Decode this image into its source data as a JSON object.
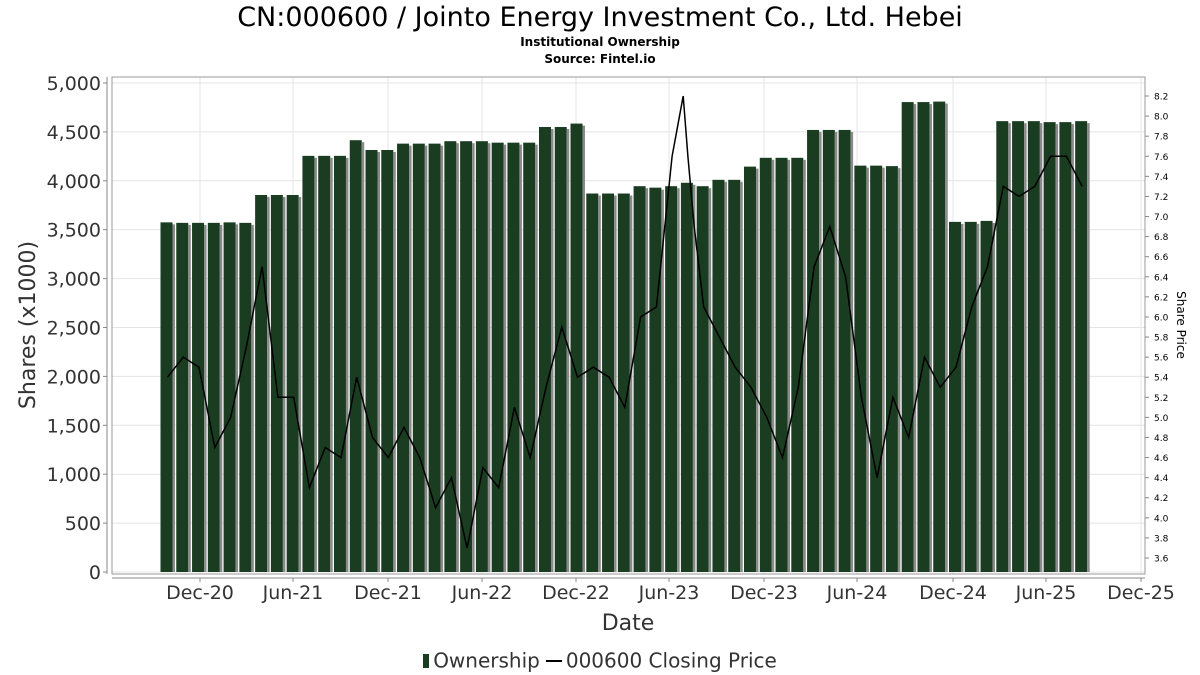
{
  "chart_data": {
    "type": "bar",
    "title": "CN:000600 / Jointo Energy Investment Co., Ltd. Hebei",
    "subtitle1": "Institutional Ownership",
    "subtitle2": "Source: Fintel.io",
    "xlabel": "Date",
    "ylabel": "Shares (x1000)",
    "y2label": "Share Price",
    "ylim": [
      0,
      5000
    ],
    "y2lim": [
      3.5,
      8.3
    ],
    "y_ticks": [
      "0",
      "500",
      "1,000",
      "1,500",
      "2,000",
      "2,500",
      "3,000",
      "3,500",
      "4,000",
      "4,500",
      "5,000"
    ],
    "y2_ticks": [
      "3.6",
      "3.8",
      "4.0",
      "4.2",
      "4.4",
      "4.6",
      "4.8",
      "5.0",
      "5.2",
      "5.4",
      "5.6",
      "5.8",
      "6.0",
      "6.2",
      "6.4",
      "6.6",
      "6.8",
      "7.0",
      "7.2",
      "7.4",
      "7.6",
      "7.8",
      "8.0",
      "8.2"
    ],
    "x_ticks": [
      "Dec-20",
      "Jun-21",
      "Dec-21",
      "Jun-22",
      "Dec-22",
      "Jun-23",
      "Dec-23",
      "Jun-24",
      "Dec-24",
      "Jun-25",
      "Dec-25"
    ],
    "grid": true,
    "legend_position": "bottom",
    "series": [
      {
        "name": "Ownership",
        "color": "#1a3d22",
        "values": [
          3575,
          3570,
          3570,
          3570,
          3575,
          3570,
          3855,
          3855,
          3855,
          4255,
          4255,
          4255,
          4415,
          4315,
          4315,
          4380,
          4380,
          4380,
          4405,
          4405,
          4405,
          4390,
          4390,
          4390,
          4550,
          4550,
          4585,
          3870,
          3870,
          3870,
          3945,
          3930,
          3945,
          3980,
          3945,
          4010,
          4010,
          4145,
          4235,
          4235,
          4235,
          4520,
          4520,
          4520,
          4155,
          4155,
          4150,
          4805,
          4805,
          4810,
          3580,
          3580,
          3590,
          4610,
          4610,
          4610,
          4600,
          4600,
          4610
        ]
      },
      {
        "name": "000600 Closing Price",
        "color": "#000000",
        "x_index": [
          0,
          1,
          2,
          3,
          4,
          5,
          6,
          7,
          8,
          9,
          10,
          11,
          12,
          13,
          14,
          15,
          16,
          17,
          18,
          19,
          20,
          21,
          22,
          23,
          24,
          25,
          26,
          27,
          28,
          29,
          30,
          31,
          32,
          32.7,
          33,
          33.4,
          34,
          35,
          36,
          37,
          38,
          39,
          40,
          41,
          42,
          43,
          44,
          45,
          46,
          47,
          48,
          49,
          50,
          51,
          52,
          53,
          54,
          55,
          56,
          57,
          58
        ],
        "values": [
          5.4,
          5.6,
          5.5,
          4.7,
          5.0,
          5.7,
          6.5,
          5.2,
          5.2,
          4.3,
          4.7,
          4.6,
          5.4,
          4.8,
          4.6,
          4.9,
          4.6,
          4.1,
          4.4,
          3.7,
          4.5,
          4.3,
          5.1,
          4.6,
          5.3,
          5.9,
          5.4,
          5.5,
          5.4,
          5.1,
          6.0,
          6.1,
          7.6,
          8.2,
          7.6,
          6.9,
          6.1,
          5.8,
          5.5,
          5.3,
          5.0,
          4.6,
          5.3,
          6.5,
          6.9,
          6.4,
          5.2,
          4.4,
          5.2,
          4.8,
          5.6,
          5.3,
          5.5,
          6.1,
          6.5,
          7.3,
          7.2,
          7.3,
          7.6,
          7.6,
          7.3
        ]
      }
    ]
  },
  "legend": {
    "ownership": "Ownership",
    "price": "000600 Closing Price"
  }
}
